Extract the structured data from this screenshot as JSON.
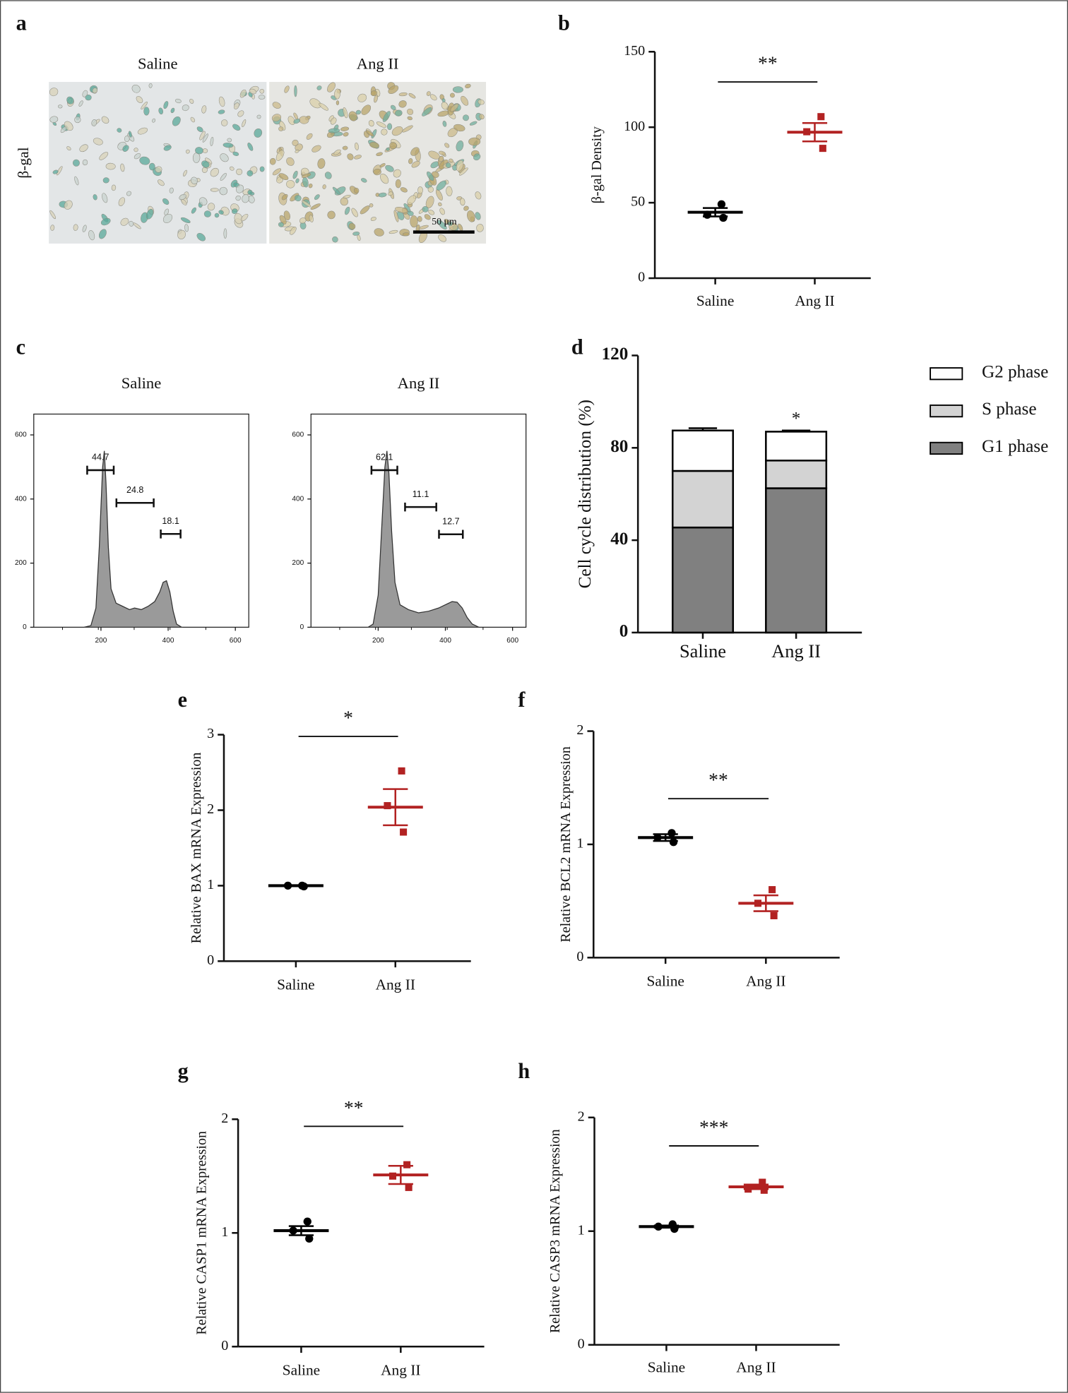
{
  "chart_data": [
    {
      "panel": "a",
      "type": "micrograph",
      "column_labels": [
        "Saline",
        "Ang II"
      ],
      "row_label": "β-gal",
      "scale_bar_label": "50 μm"
    },
    {
      "panel": "b",
      "type": "dot-plot",
      "ylabel": "β-gal Density",
      "categories": [
        "Saline",
        "Ang II"
      ],
      "groups": [
        {
          "color": "#000000",
          "marker": "circle",
          "points": [
            49,
            42,
            40
          ],
          "mean": 43.7,
          "sem": 2.8
        },
        {
          "color": "#b22222",
          "marker": "square",
          "points": [
            107,
            97,
            86
          ],
          "mean": 96.7,
          "sem": 6.1
        }
      ],
      "significance": "**",
      "ylim": [
        0,
        150
      ],
      "yticks": [
        0,
        50,
        100,
        150
      ]
    },
    {
      "panel": "c",
      "type": "flow-histogram",
      "title": "Saline",
      "color": "#9a9a9a",
      "x": [
        150,
        170,
        185,
        195,
        205,
        210,
        215,
        222,
        230,
        245,
        265,
        285,
        300,
        320,
        340,
        360,
        375,
        385,
        395,
        405,
        415,
        425,
        440
      ],
      "values": [
        0,
        5,
        60,
        250,
        500,
        550,
        450,
        250,
        120,
        75,
        65,
        55,
        60,
        55,
        65,
        80,
        110,
        140,
        145,
        110,
        50,
        10,
        0
      ],
      "gates": [
        {
          "percent": 44.7,
          "range": [
            159,
            238
          ],
          "level": 490
        },
        {
          "percent": 24.8,
          "range": [
            246,
            357
          ],
          "level": 388
        },
        {
          "percent": 18.1,
          "range": [
            378,
            437
          ],
          "level": 291
        }
      ],
      "xlim": [
        0,
        640
      ],
      "ylim": [
        0,
        665
      ],
      "xticks": [
        200,
        400,
        600
      ],
      "yticks": [
        0,
        200,
        400,
        600
      ]
    },
    {
      "type": "flow-histogram",
      "title": "Ang II",
      "color": "#9a9a9a",
      "x": [
        170,
        185,
        200,
        210,
        220,
        226,
        232,
        240,
        250,
        265,
        290,
        320,
        350,
        380,
        400,
        420,
        435,
        450,
        465,
        480,
        500
      ],
      "values": [
        0,
        10,
        100,
        300,
        500,
        550,
        480,
        300,
        140,
        70,
        55,
        45,
        50,
        60,
        70,
        80,
        78,
        60,
        30,
        10,
        0
      ],
      "gates": [
        {
          "percent": 62.1,
          "range": [
            180,
            257
          ],
          "level": 490
        },
        {
          "percent": 11.1,
          "range": [
            280,
            373
          ],
          "level": 375
        },
        {
          "percent": 12.7,
          "range": [
            381,
            452
          ],
          "level": 290
        }
      ],
      "xlim": [
        0,
        640
      ],
      "ylim": [
        0,
        665
      ],
      "xticks": [
        200,
        400,
        600
      ],
      "yticks": [
        0,
        200,
        400,
        600
      ]
    },
    {
      "panel": "d",
      "type": "stacked-bar",
      "ylabel": "Cell cycle distribution (%)",
      "categories": [
        "Saline",
        "Ang II"
      ],
      "series": [
        {
          "name": "G1 phase",
          "color": "#808080",
          "values": [
            45.5,
            62.5
          ],
          "errors": [
            1,
            3.5
          ],
          "annotations": [
            null,
            "*"
          ]
        },
        {
          "name": "S phase",
          "color": "#d3d3d3",
          "values": [
            24.5,
            12
          ],
          "errors": [
            1.5,
            1.5
          ],
          "annotations": [
            null,
            "*"
          ]
        },
        {
          "name": "G2 phase",
          "color": "#ffffff",
          "values": [
            17.5,
            12.5
          ],
          "errors": [
            1,
            0.5
          ],
          "annotations": [
            null,
            "*"
          ]
        }
      ],
      "ylim": [
        0,
        120
      ],
      "yticks": [
        0,
        40,
        80,
        120
      ]
    },
    {
      "panel": "e",
      "type": "dot-plot",
      "ylabel": "Relative BAX mRNA Expression",
      "categories": [
        "Saline",
        "Ang II"
      ],
      "groups": [
        {
          "color": "#000000",
          "marker": "circle",
          "points": [
            1.0,
            1.0,
            0.99
          ],
          "mean": 1.0,
          "sem": 0.005
        },
        {
          "color": "#b22222",
          "marker": "square",
          "points": [
            2.52,
            2.06,
            1.71
          ],
          "mean": 2.04,
          "sem": 0.24
        }
      ],
      "significance": "*",
      "ylim": [
        0,
        3
      ],
      "yticks": [
        0,
        1,
        2,
        3
      ]
    },
    {
      "panel": "f",
      "type": "dot-plot",
      "ylabel": "Relative BCL2 mRNA Expression",
      "categories": [
        "Saline",
        "Ang II"
      ],
      "groups": [
        {
          "color": "#000000",
          "marker": "circle",
          "points": [
            1.1,
            1.06,
            1.02
          ],
          "mean": 1.06,
          "sem": 0.03
        },
        {
          "color": "#b22222",
          "marker": "square",
          "points": [
            0.6,
            0.48,
            0.37
          ],
          "mean": 0.48,
          "sem": 0.07
        }
      ],
      "significance": "**",
      "ylim": [
        0,
        2
      ],
      "yticks": [
        0,
        1,
        2
      ]
    },
    {
      "panel": "g",
      "type": "dot-plot",
      "ylabel": "Relative CASP1 mRNA Expression",
      "categories": [
        "Saline",
        "Ang II"
      ],
      "groups": [
        {
          "color": "#000000",
          "marker": "circle",
          "points": [
            1.1,
            1.02,
            0.95
          ],
          "mean": 1.02,
          "sem": 0.04
        },
        {
          "color": "#b22222",
          "marker": "square",
          "points": [
            1.6,
            1.5,
            1.4
          ],
          "mean": 1.51,
          "sem": 0.08
        }
      ],
      "significance": "**",
      "ylim": [
        0,
        2
      ],
      "yticks": [
        0,
        1,
        2
      ]
    },
    {
      "panel": "h",
      "type": "dot-plot",
      "ylabel": "Relative CASP3 mRNA Expression",
      "categories": [
        "Saline",
        "Ang II"
      ],
      "groups": [
        {
          "color": "#000000",
          "marker": "circle",
          "points": [
            1.06,
            1.04,
            1.02
          ],
          "mean": 1.04,
          "sem": 0.01
        },
        {
          "color": "#b22222",
          "marker": "square",
          "points": [
            1.43,
            1.37,
            1.36
          ],
          "mean": 1.39,
          "sem": 0.02
        }
      ],
      "significance": "***",
      "ylim": [
        0,
        2
      ],
      "yticks": [
        0,
        1,
        2
      ]
    }
  ]
}
